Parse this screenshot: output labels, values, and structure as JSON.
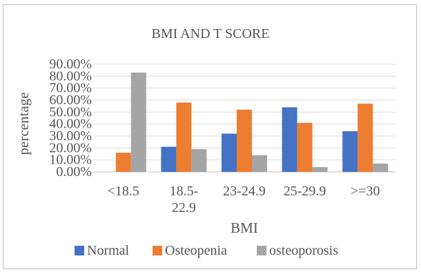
{
  "chart_data": {
    "type": "bar",
    "title": "BMI AND T SCORE",
    "xlabel": "BMI",
    "ylabel": "percentage",
    "categories": [
      [
        "<18.5"
      ],
      [
        "18.5-",
        "22.9"
      ],
      [
        "23-24.9"
      ],
      [
        "25-29.9"
      ],
      [
        ">=30"
      ]
    ],
    "series": [
      {
        "name": "Normal",
        "color": "#4472C4",
        "values": [
          0,
          21,
          32,
          54,
          34
        ]
      },
      {
        "name": "Osteopenia",
        "color": "#ED7D31",
        "values": [
          16,
          58,
          52,
          41,
          57
        ]
      },
      {
        "name": "osteoporosis",
        "color": "#A5A5A5",
        "values": [
          83,
          19,
          14,
          4,
          7
        ]
      }
    ],
    "ylim": [
      0,
      90
    ],
    "yticks": [
      "0.00%",
      "10.00%",
      "20.00%",
      "30.00%",
      "40.00%",
      "50.00%",
      "60.00%",
      "70.00%",
      "80.00%",
      "90.00%"
    ],
    "grid": true,
    "legend": "bottom"
  }
}
